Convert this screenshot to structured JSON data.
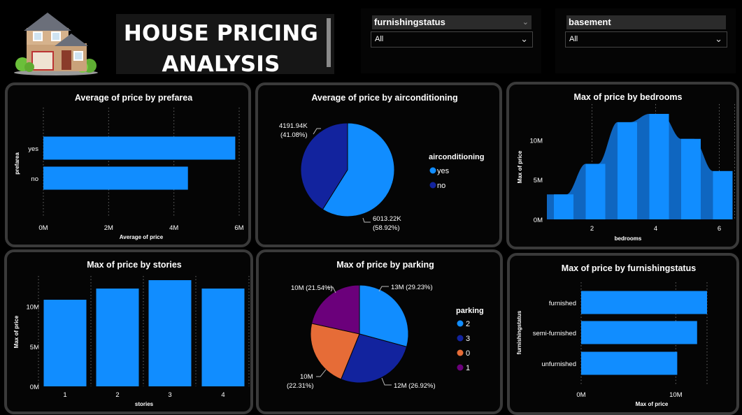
{
  "header": {
    "title_line1": "HOUSE PRICING",
    "title_line2": "ANALYSIS",
    "logo_icon": "house-icon"
  },
  "slicers": [
    {
      "label": "furnishingstatus",
      "value": "All"
    },
    {
      "label": "basement",
      "value": "All"
    }
  ],
  "colors": {
    "blue": "#118DFF",
    "dark_blue": "#12239E",
    "orange": "#E66C37",
    "purple": "#6B007B",
    "bedrooms_dark": "#0F66C0"
  },
  "chart_data": [
    {
      "id": "prefarea",
      "type": "bar",
      "orientation": "horizontal",
      "title": "Average of price by prefarea",
      "categories": [
        "yes",
        "no"
      ],
      "values": [
        5880000,
        4430000
      ],
      "xlabel": "Average of price",
      "ylabel": "prefarea",
      "xticks": [
        0,
        2000000,
        4000000,
        6000000
      ],
      "xtick_labels": [
        "0M",
        "2M",
        "4M",
        "6M"
      ],
      "xlim": [
        0,
        6000000
      ]
    },
    {
      "id": "airconditioning",
      "type": "pie",
      "title": "Average of price by airconditioning",
      "legend_title": "airconditioning",
      "slices": [
        {
          "name": "yes",
          "value": 6013.22,
          "label": "6013.22K",
          "percent": "(58.92%)",
          "color": "#118DFF"
        },
        {
          "name": "no",
          "value": 4191.94,
          "label": "4191.94K",
          "percent": "(41.08%)",
          "color": "#12239E"
        }
      ]
    },
    {
      "id": "bedrooms",
      "type": "area",
      "title": "Max of price by bedrooms",
      "x": [
        1,
        2,
        3,
        4,
        5,
        6
      ],
      "values": [
        3150000,
        7000000,
        12250000,
        13300000,
        10150000,
        6090000
      ],
      "xlabel": "bedrooms",
      "ylabel": "Max of price",
      "xticks": [
        2,
        4,
        6
      ],
      "yticks": [
        0,
        5000000,
        10000000
      ],
      "ytick_labels": [
        "0M",
        "5M",
        "10M"
      ],
      "ylim": [
        0,
        13300000
      ]
    },
    {
      "id": "stories",
      "type": "bar",
      "title": "Max of price by stories",
      "categories": [
        "1",
        "2",
        "3",
        "4"
      ],
      "values": [
        10850000,
        12250000,
        13300000,
        12250000
      ],
      "xlabel": "stories",
      "ylabel": "Max of price",
      "yticks": [
        0,
        5000000,
        10000000
      ],
      "ytick_labels": [
        "0M",
        "5M",
        "10M"
      ],
      "ylim": [
        0,
        13300000
      ]
    },
    {
      "id": "parking",
      "type": "pie",
      "title": "Max of price by parking",
      "legend_title": "parking",
      "slices": [
        {
          "name": "2",
          "value": 29.23,
          "label": "13M (29.23%)",
          "color": "#118DFF"
        },
        {
          "name": "3",
          "value": 26.92,
          "label": "12M (26.92%)",
          "color": "#12239E"
        },
        {
          "name": "0",
          "value": 22.31,
          "label": "10M",
          "label2": "(22.31%)",
          "color": "#E66C37"
        },
        {
          "name": "1",
          "value": 21.54,
          "label": "10M (21.54%)",
          "color": "#6B007B"
        }
      ]
    },
    {
      "id": "furnishingstatus",
      "type": "bar",
      "orientation": "horizontal",
      "title": "Max of price by furnishingstatus",
      "categories": [
        "furnished",
        "semi-furnished",
        "unfurnished"
      ],
      "values": [
        13300000,
        12250000,
        10150000
      ],
      "xlabel": "Max of price",
      "ylabel": "furnishingstatus",
      "xticks": [
        0,
        10000000
      ],
      "xtick_labels": [
        "0M",
        "10M"
      ],
      "xlim": [
        0,
        13300000
      ]
    }
  ]
}
